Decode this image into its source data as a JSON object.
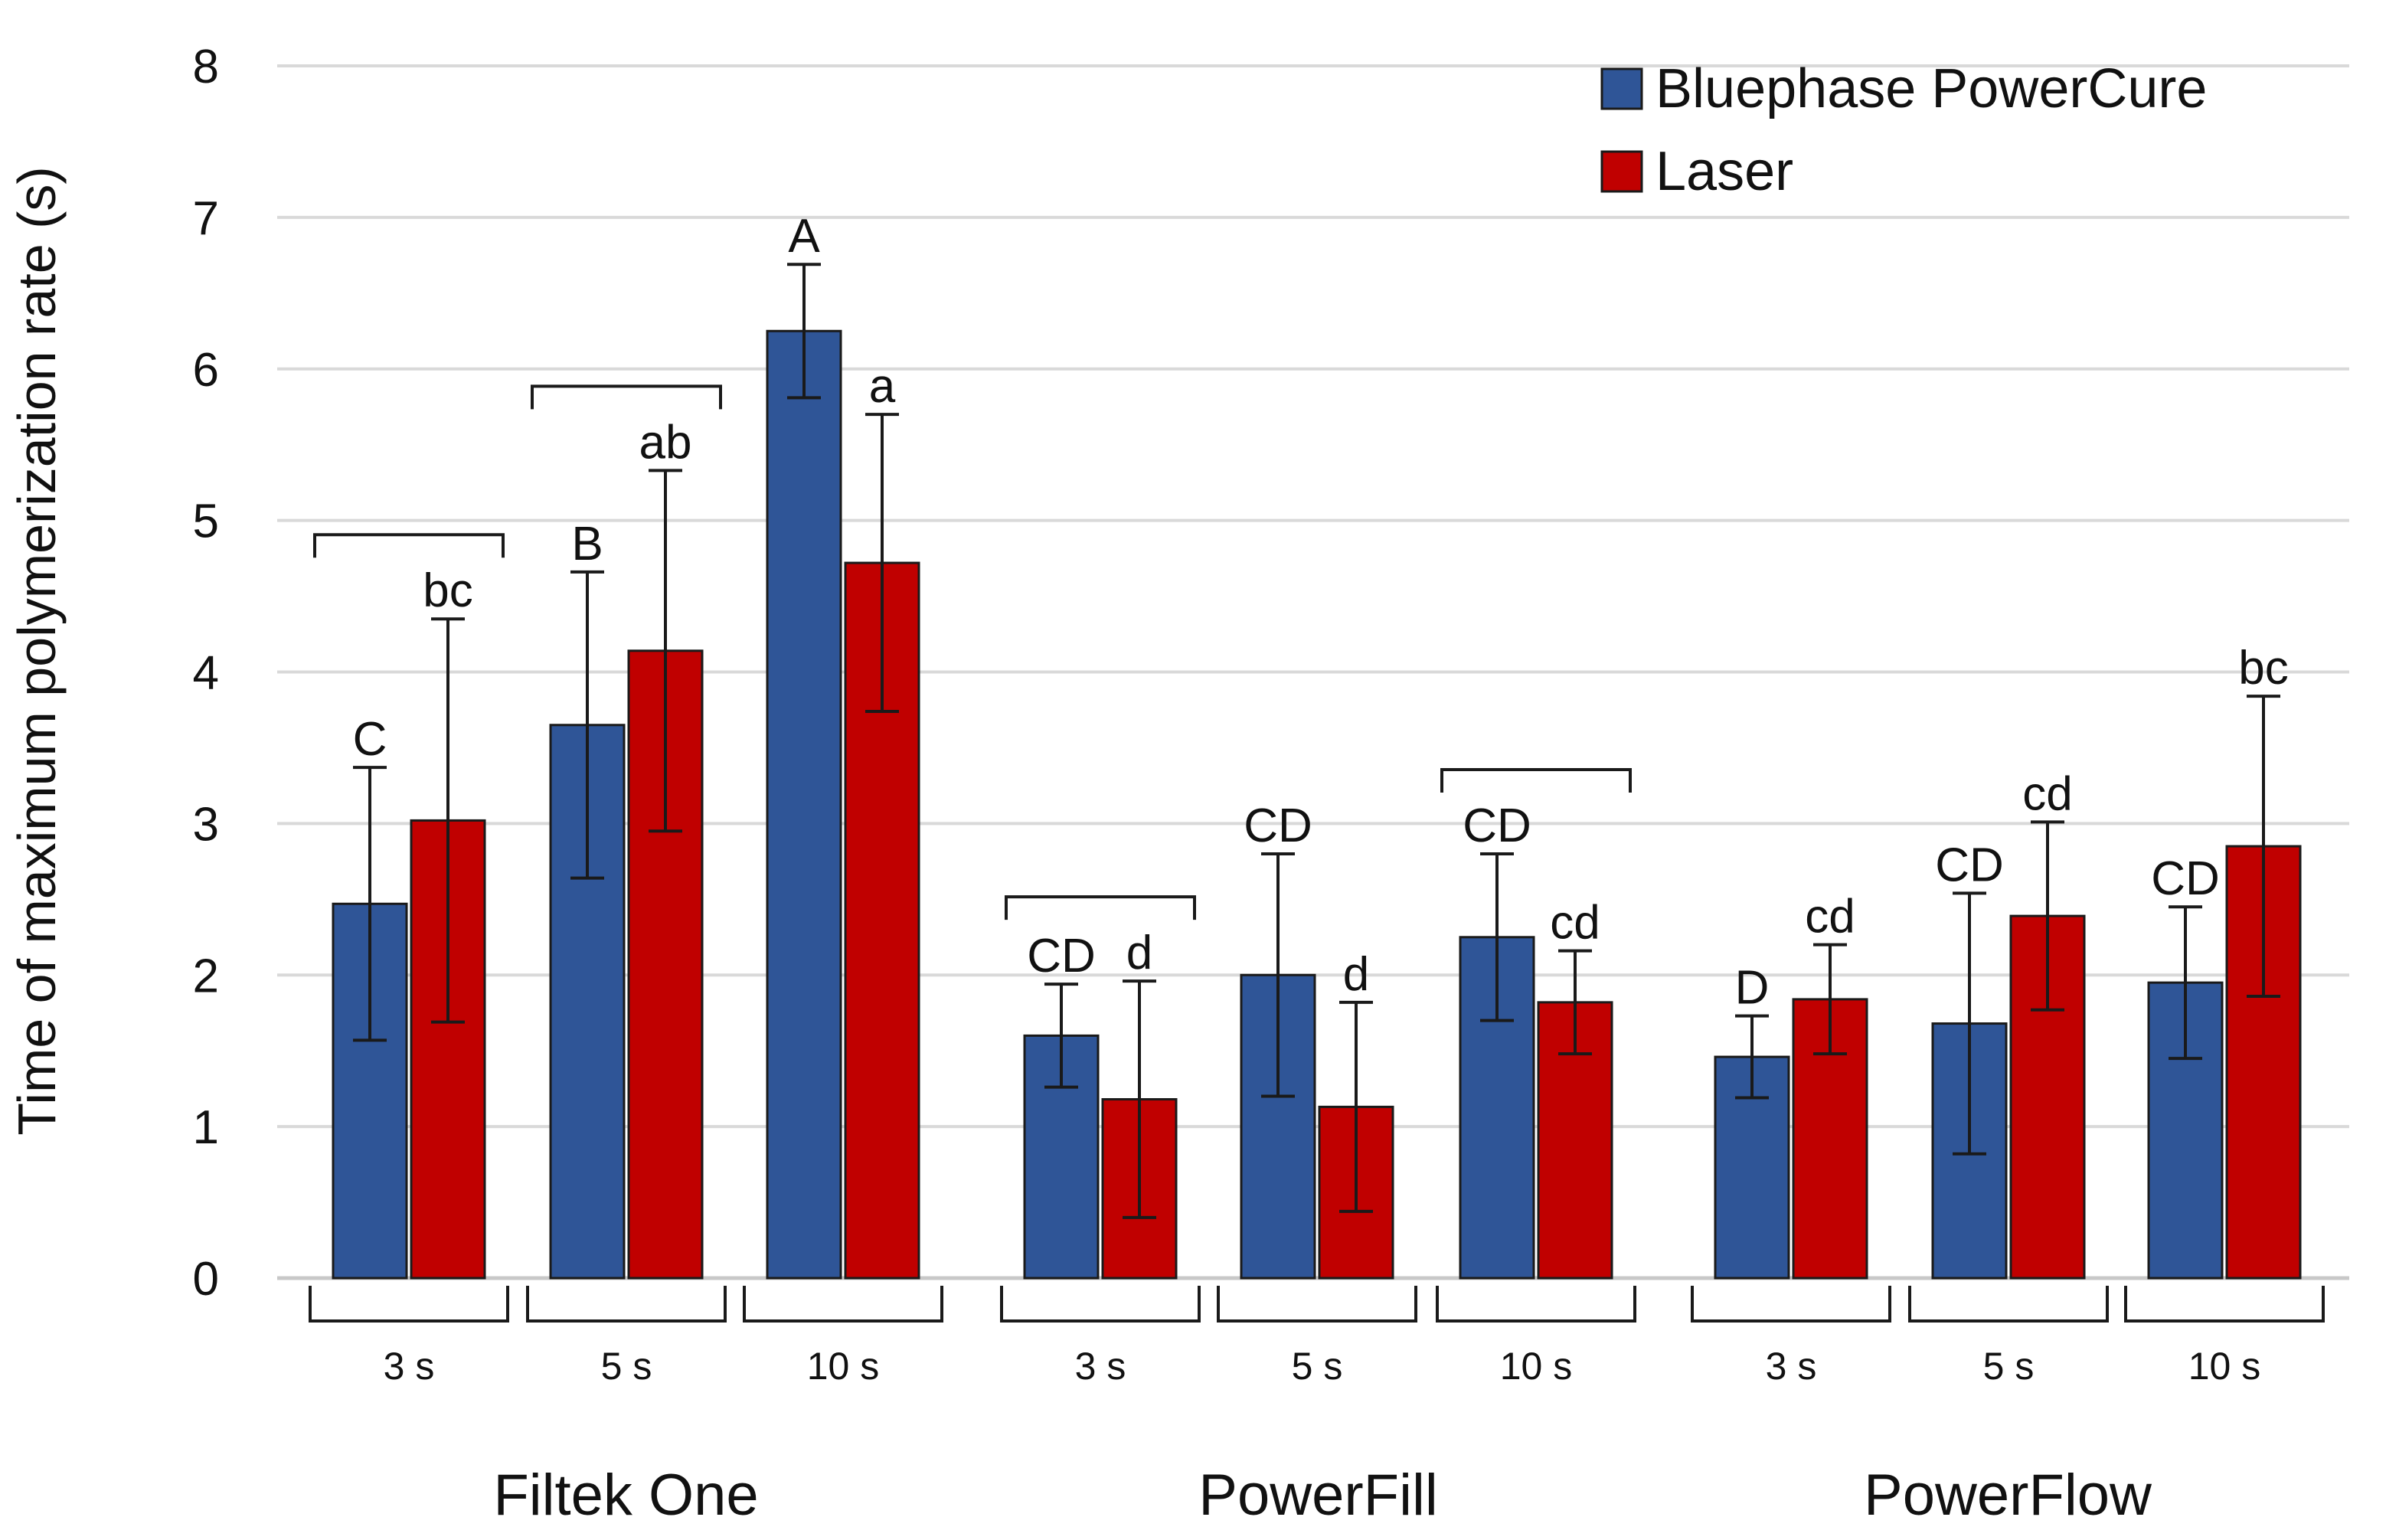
{
  "chart_data": {
    "type": "bar",
    "title": "",
    "xlabel": "",
    "ylabel": "Time of maximum polymerization rate (s)",
    "ylim": [
      0,
      8
    ],
    "yticks": [
      "0",
      "1",
      "2",
      "3",
      "4",
      "5",
      "6",
      "7",
      "8"
    ],
    "grid": true,
    "legend_position": "top-right",
    "colors": {
      "Bluephase PowerCure": "#2f5597",
      "Laser": "#c00000"
    },
    "series": [
      {
        "name": "Bluephase PowerCure",
        "color": "#2f5597"
      },
      {
        "name": "Laser",
        "color": "#c00000"
      }
    ],
    "materials": [
      {
        "name": "Filtek One"
      },
      {
        "name": "PowerFill"
      },
      {
        "name": "PowerFlow"
      }
    ],
    "groups": [
      {
        "material": "Filtek One",
        "duration": "3 s",
        "bracket": true,
        "bars": [
          {
            "series": "Bluephase PowerCure",
            "value": 2.47,
            "error": 0.9,
            "label": "C"
          },
          {
            "series": "Laser",
            "value": 3.02,
            "error": 1.33,
            "label": "bc"
          }
        ]
      },
      {
        "material": "Filtek One",
        "duration": "5 s",
        "bracket": true,
        "bars": [
          {
            "series": "Bluephase PowerCure",
            "value": 3.65,
            "error": 1.01,
            "label": "B"
          },
          {
            "series": "Laser",
            "value": 4.14,
            "error": 1.19,
            "label": "ab"
          }
        ]
      },
      {
        "material": "Filtek One",
        "duration": "10 s",
        "bracket": false,
        "bars": [
          {
            "series": "Bluephase PowerCure",
            "value": 6.25,
            "error": 0.44,
            "label": "A"
          },
          {
            "series": "Laser",
            "value": 4.72,
            "error": 0.98,
            "label": "a"
          }
        ]
      },
      {
        "material": "PowerFill",
        "duration": "3 s",
        "bracket": true,
        "bars": [
          {
            "series": "Bluephase PowerCure",
            "value": 1.6,
            "error": 0.34,
            "label": "CD"
          },
          {
            "series": "Laser",
            "value": 1.18,
            "error": 0.78,
            "label": "d"
          }
        ]
      },
      {
        "material": "PowerFill",
        "duration": "5 s",
        "bracket": false,
        "bars": [
          {
            "series": "Bluephase PowerCure",
            "value": 2.0,
            "error": 0.8,
            "label": "CD"
          },
          {
            "series": "Laser",
            "value": 1.13,
            "error": 0.69,
            "label": "d"
          }
        ]
      },
      {
        "material": "PowerFill",
        "duration": "10 s",
        "bracket": true,
        "bars": [
          {
            "series": "Bluephase PowerCure",
            "value": 2.25,
            "error": 0.55,
            "label": "CD"
          },
          {
            "series": "Laser",
            "value": 1.82,
            "error": 0.34,
            "label": "cd"
          }
        ]
      },
      {
        "material": "PowerFlow",
        "duration": "3 s",
        "bracket": false,
        "bars": [
          {
            "series": "Bluephase PowerCure",
            "value": 1.46,
            "error": 0.27,
            "label": "D"
          },
          {
            "series": "Laser",
            "value": 1.84,
            "error": 0.36,
            "label": "cd"
          }
        ]
      },
      {
        "material": "PowerFlow",
        "duration": "5 s",
        "bracket": false,
        "bars": [
          {
            "series": "Bluephase PowerCure",
            "value": 1.68,
            "error": 0.86,
            "label": "CD"
          },
          {
            "series": "Laser",
            "value": 2.39,
            "error": 0.62,
            "label": "cd"
          }
        ]
      },
      {
        "material": "PowerFlow",
        "duration": "10 s",
        "bracket": false,
        "bars": [
          {
            "series": "Bluephase PowerCure",
            "value": 1.95,
            "error": 0.5,
            "label": "CD"
          },
          {
            "series": "Laser",
            "value": 2.85,
            "error": 0.99,
            "label": "bc"
          }
        ]
      }
    ]
  }
}
